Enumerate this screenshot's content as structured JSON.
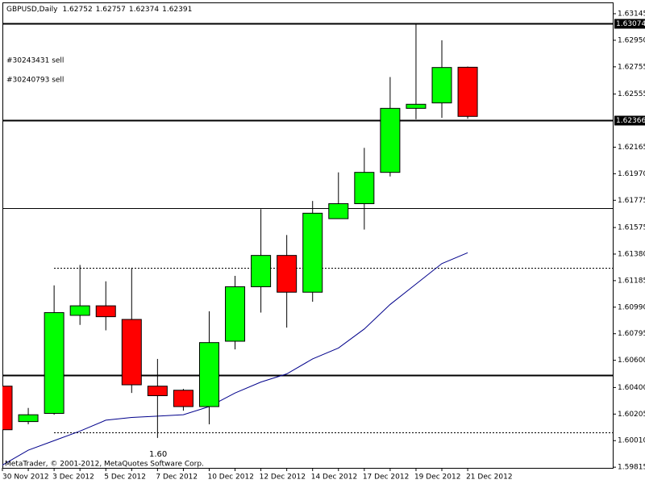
{
  "chart_data": {
    "type": "candlestick",
    "title": "GBPUSD,Daily",
    "categories": [
      "30 Nov 2012",
      null,
      "3 Dec 2012",
      null,
      "5 Dec 2012",
      null,
      "7 Dec 2012",
      null,
      "10 Dec 2012",
      null,
      "12 Dec 2012",
      null,
      "14 Dec 2012",
      null,
      "17 Dec 2012",
      null,
      "19 Dec 2012",
      null,
      "21 Dec 2012"
    ],
    "open": [
      1.6041,
      1.6015,
      1.6021,
      1.6093,
      1.61,
      1.609,
      1.6041,
      1.6038,
      1.6026,
      1.6074,
      1.6114,
      1.6137,
      1.611,
      1.6164,
      1.6175,
      1.6198,
      1.6245,
      1.6249,
      1.62752
    ],
    "high": [
      1.6063,
      1.6025,
      1.6115,
      1.613,
      1.6118,
      1.6128,
      1.6061,
      1.6039,
      1.6096,
      1.6122,
      1.6171,
      1.6152,
      1.6177,
      1.6198,
      1.6216,
      1.6268,
      1.63074,
      1.6295,
      1.62757
    ],
    "low": [
      1.5994,
      1.6013,
      1.602,
      1.6086,
      1.6082,
      1.6036,
      1.6003,
      1.6023,
      1.6013,
      1.6068,
      1.6095,
      1.6084,
      1.6103,
      1.6164,
      1.6156,
      1.6195,
      1.6237,
      1.6238,
      1.62374
    ],
    "close": [
      1.6009,
      1.602,
      1.6095,
      1.61,
      1.6092,
      1.6042,
      1.6034,
      1.6026,
      1.6073,
      1.6114,
      1.6137,
      1.611,
      1.6168,
      1.6175,
      1.6198,
      1.6245,
      1.6248,
      1.6275,
      1.62391
    ],
    "up_color": "#00ff00",
    "down_color": "#ff0000",
    "ma": {
      "color": "#00008b",
      "values": [
        1.5983,
        1.5994,
        1.6001,
        1.6008,
        1.6016,
        1.6018,
        1.6019,
        1.602,
        1.6026,
        1.6036,
        1.6044,
        1.605,
        1.6061,
        1.6069,
        1.6083,
        1.6101,
        1.6116,
        1.6131,
        1.6139
      ]
    },
    "levels": [
      {
        "value": 1.63074,
        "style": "thick",
        "tag": true
      },
      {
        "value": 1.62366,
        "style": "thick",
        "tag": true
      },
      {
        "value": 1.6172,
        "style": "thin",
        "tag": false
      },
      {
        "value": 1.6128,
        "style": "dotted",
        "tag": false
      },
      {
        "value": 1.6049,
        "style": "thick",
        "tag": false
      },
      {
        "value": 1.6007,
        "style": "dotted",
        "tag": false
      }
    ],
    "annotations": [
      "#30243431 sell",
      "#30240793 sell",
      "1.60"
    ],
    "copyright": "MetaTrader, © 2001-2012, MetaQuotes Software Corp.",
    "ylim": [
      1.5981,
      1.63228
    ],
    "yticks": [
      1.63145,
      {
        "value": 1.6295,
        "label": "1.62950"
      },
      1.62755,
      1.62555,
      1.62165,
      {
        "value": 1.6197,
        "label": "1.61970"
      },
      1.61775,
      1.61575,
      {
        "value": 1.6138,
        "label": "1.61380"
      },
      1.61185,
      {
        "value": 1.6099,
        "label": "1.60990"
      },
      1.60795,
      {
        "value": 1.606,
        "label": "1.60600"
      },
      {
        "value": 1.604,
        "label": "1.60400"
      },
      1.60205,
      {
        "value": 1.6001,
        "label": "1.60010"
      },
      1.59815
    ],
    "grid": false
  }
}
